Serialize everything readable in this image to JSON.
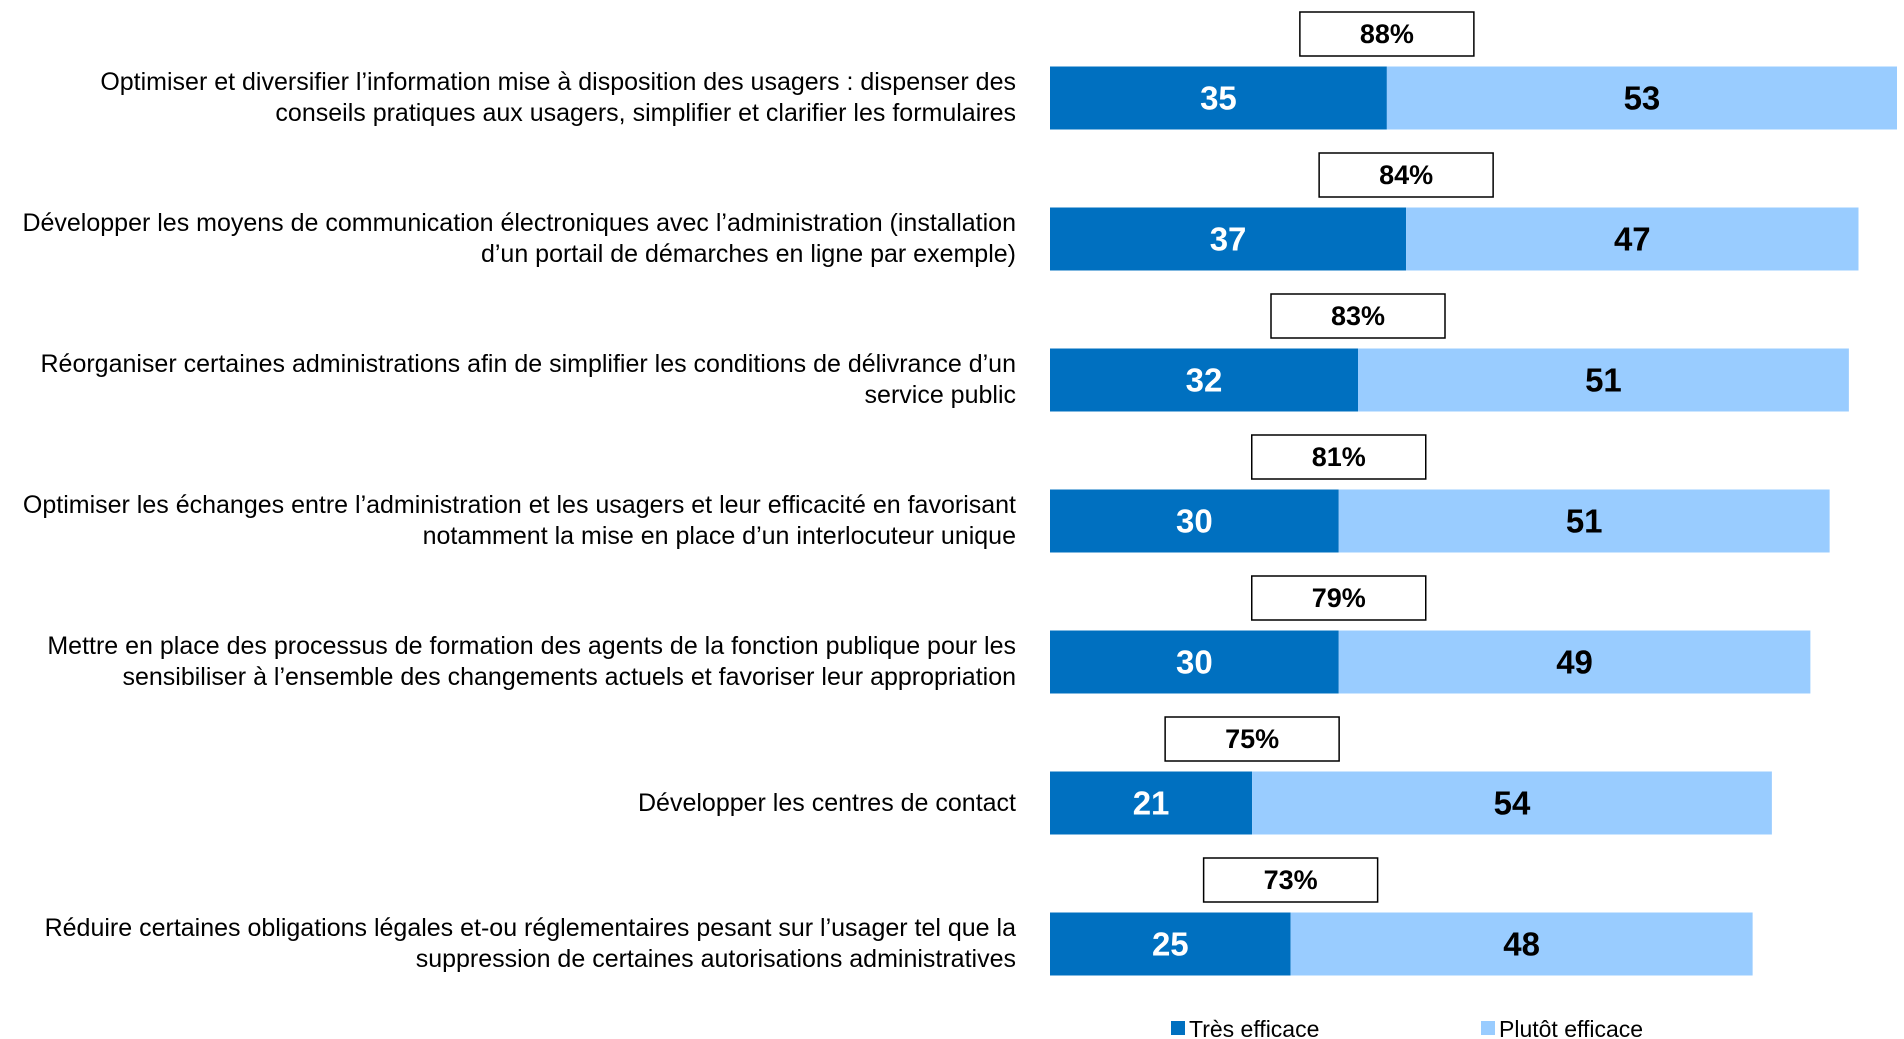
{
  "chart_data": {
    "type": "stacked_bar_horizontal",
    "categories": [
      "Optimiser et diversifier l’information mise à disposition des usagers : dispenser des conseils pratiques aux usagers, simplifier et clarifier les formulaires",
      "Développer les moyens de communication électroniques avec l’administration (installation d’un portail de démarches en ligne par exemple)",
      "Réorganiser certaines administrations afin de simplifier les conditions de délivrance d’un service public",
      "Optimiser les échanges entre l’administration et les usagers et leur efficacité en favorisant notamment la mise en place d’un interlocuteur unique",
      "Mettre en place des processus de formation des agents de la fonction publique pour les sensibiliser à l’ensemble des changements actuels et favoriser leur appropriation",
      "Développer les centres de contact",
      "Réduire certaines obligations légales et-ou réglementaires pesant sur l’usager tel que la suppression de certaines autorisations administratives"
    ],
    "series": [
      {
        "name": "Très efficace",
        "color": "#0070c0",
        "label_color": "#ffffff",
        "values": [
          35,
          37,
          32,
          30,
          30,
          21,
          25
        ]
      },
      {
        "name": "Plutôt efficace",
        "color": "#99ccff",
        "label_color": "#000000",
        "values": [
          53,
          47,
          51,
          51,
          49,
          54,
          48
        ]
      }
    ],
    "totals": {
      "values": [
        88,
        84,
        83,
        81,
        79,
        75,
        73
      ],
      "value_labels": [
        "88%",
        "84%",
        "83%",
        "81%",
        "79%",
        "75%",
        "73%"
      ]
    },
    "legend": "bottom"
  }
}
